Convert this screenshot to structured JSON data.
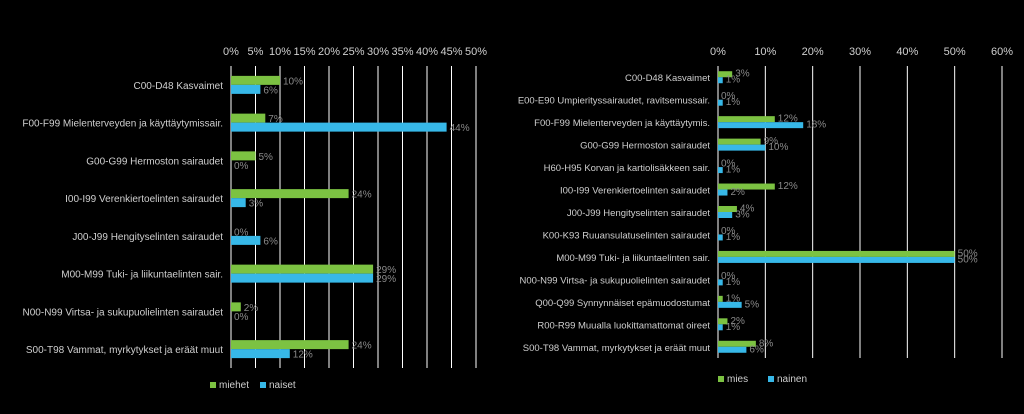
{
  "colors": {
    "background": "#000000",
    "green": "#7cc242",
    "blue": "#37b8e8",
    "grid": "#ffffff",
    "cat_text": "#cfcfcf",
    "value_text": "#8a8a8a"
  },
  "chart_data": [
    {
      "type": "bar",
      "orientation": "horizontal",
      "title": "",
      "xlabel": "",
      "ylabel": "",
      "xlim": [
        0,
        50
      ],
      "xticks": [
        "0%",
        "5%",
        "10%",
        "15%",
        "20%",
        "25%",
        "30%",
        "35%",
        "40%",
        "45%",
        "50%"
      ],
      "grid": true,
      "legend_position": "bottom-left",
      "categories": [
        "C00-D48 Kasvaimet",
        "F00-F99 Mielenterveyden ja käyttäytymissair.",
        "G00-G99 Hermoston sairaudet",
        "I00-I99 Verenkiertoelinten sairaudet",
        "J00-J99 Hengityselinten sairaudet",
        "M00-M99 Tuki- ja liikuntaelinten sair.",
        "N00-N99 Virtsa- ja sukupuolielinten sairaudet",
        "S00-T98 Vammat, myrkytykset ja eräät muut"
      ],
      "series": [
        {
          "name": "miehet",
          "values": [
            10,
            7,
            5,
            24,
            0,
            29,
            2,
            24
          ],
          "labels": [
            "10%",
            "7%",
            "5%",
            "24%",
            "0%",
            "29%",
            "2%",
            "24%"
          ]
        },
        {
          "name": "naiset",
          "values": [
            6,
            44,
            0,
            3,
            6,
            29,
            0,
            12
          ],
          "labels": [
            "6%",
            "44%",
            "0%",
            "3%",
            "6%",
            "29%",
            "0%",
            "12%"
          ]
        }
      ]
    },
    {
      "type": "bar",
      "orientation": "horizontal",
      "title": "",
      "xlabel": "",
      "ylabel": "",
      "xlim": [
        0,
        60
      ],
      "xticks": [
        "0%",
        "10%",
        "20%",
        "30%",
        "40%",
        "50%",
        "60%"
      ],
      "grid": true,
      "legend_position": "bottom-left",
      "categories": [
        "C00-D48 Kasvaimet",
        "E00-E90 Umpierityssairaudet, ravitsemussair.",
        "F00-F99 Mielenterveyden ja käyttäytymis.",
        "G00-G99 Hermoston sairaudet",
        "H60-H95 Korvan ja kartiolisäkkeen sair.",
        "I00-I99 Verenkiertoelinten sairaudet",
        "J00-J99 Hengityselinten sairaudet",
        "K00-K93 Ruuansulatuselinten sairaudet",
        "M00-M99 Tuki- ja liikuntaelinten sair.",
        "N00-N99 Virtsa- ja sukupuolielinten sairaudet",
        "Q00-Q99 Synnynnäiset epämuodostumat",
        "R00-R99 Muualla luokittamattomat oireet",
        "S00-T98 Vammat, myrkytykset ja eräät muut"
      ],
      "series": [
        {
          "name": "mies",
          "values": [
            3,
            0,
            12,
            9,
            0,
            12,
            4,
            0,
            50,
            0,
            1,
            2,
            8
          ],
          "labels": [
            "3%",
            "0%",
            "12%",
            "9%",
            "0%",
            "12%",
            "4%",
            "0%",
            "50%",
            "0%",
            "1%",
            "2%",
            "8%"
          ]
        },
        {
          "name": "nainen",
          "values": [
            1,
            1,
            18,
            10,
            1,
            2,
            3,
            1,
            50,
            1,
            5,
            1,
            6
          ],
          "labels": [
            "1%",
            "1%",
            "18%",
            "10%",
            "1%",
            "2%",
            "3%",
            "1%",
            "50%",
            "1%",
            "5%",
            "1%",
            "6%"
          ]
        }
      ]
    }
  ]
}
